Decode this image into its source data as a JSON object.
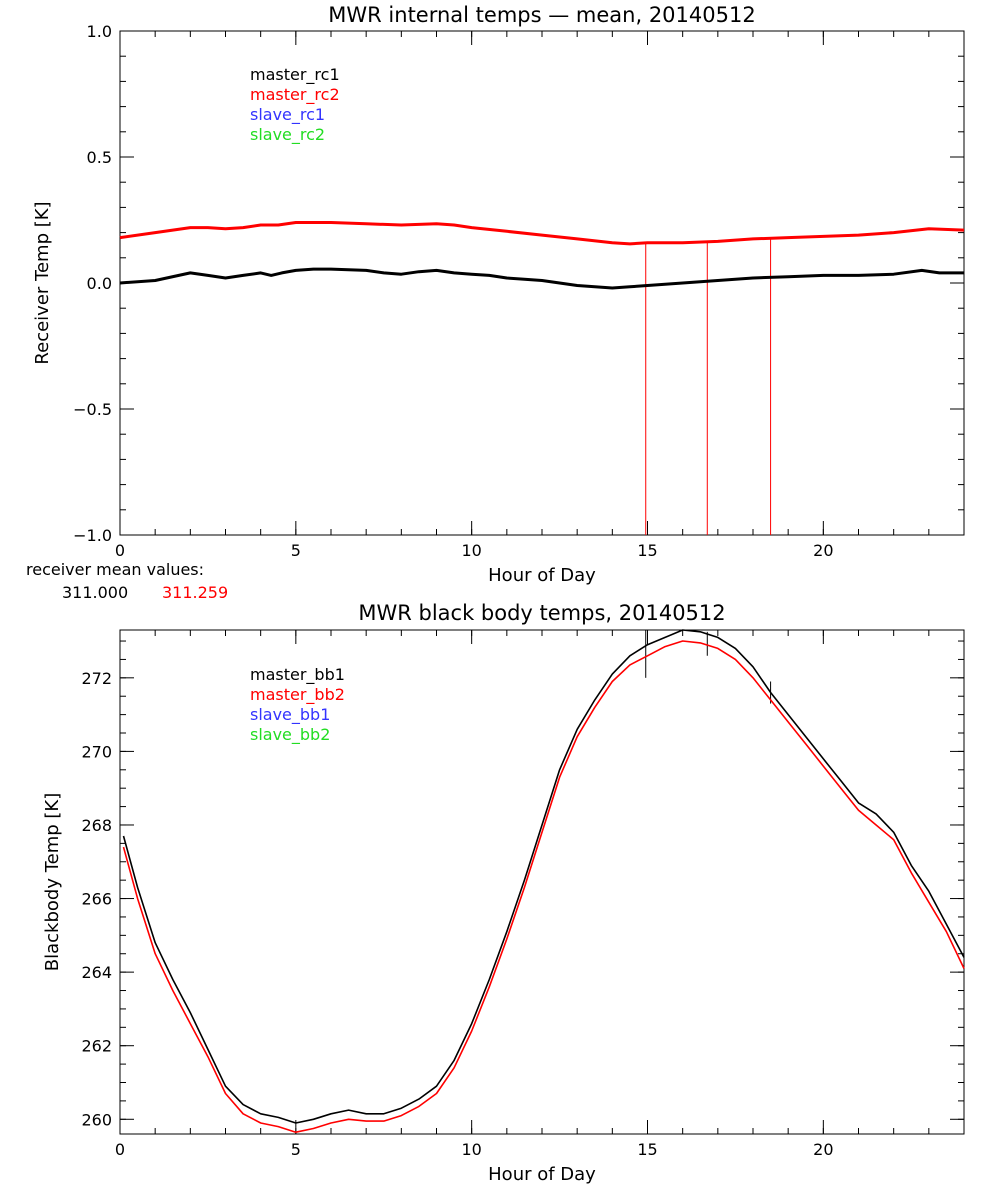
{
  "chart_data": [
    {
      "type": "line",
      "title": "MWR internal temps — mean, 20140512",
      "xlabel": "Hour of Day",
      "ylabel": "Receiver Temp [K]",
      "xlim": [
        0,
        24
      ],
      "ylim": [
        -1.0,
        1.0
      ],
      "xticks": [
        0,
        5,
        10,
        15,
        20
      ],
      "xtick_labels": [
        "0",
        "5",
        "10",
        "15",
        "20"
      ],
      "yticks": [
        -1.0,
        -0.5,
        0.0,
        0.5,
        1.0
      ],
      "ytick_labels": [
        "−1.0",
        "−0.5",
        "0.0",
        "0.5",
        "1.0"
      ],
      "legend_position": "top-left",
      "series": [
        {
          "name": "master_rc1",
          "color": "#000000",
          "x": [
            0,
            1,
            2,
            2.5,
            3,
            3.5,
            4,
            4.3,
            4.6,
            5,
            5.5,
            6,
            7,
            7.5,
            8,
            8.5,
            9,
            9.5,
            10,
            10.5,
            11,
            11.5,
            12,
            12.5,
            13,
            13.5,
            14,
            14.5,
            15,
            16,
            17,
            18,
            19,
            20,
            21,
            22,
            22.8,
            23.3,
            24
          ],
          "y": [
            0.0,
            0.01,
            0.04,
            0.03,
            0.02,
            0.03,
            0.04,
            0.03,
            0.04,
            0.05,
            0.055,
            0.055,
            0.05,
            0.04,
            0.035,
            0.045,
            0.05,
            0.04,
            0.035,
            0.03,
            0.02,
            0.015,
            0.01,
            0.0,
            -0.01,
            -0.015,
            -0.02,
            -0.015,
            -0.01,
            0.0,
            0.01,
            0.02,
            0.025,
            0.03,
            0.03,
            0.035,
            0.05,
            0.04,
            0.04
          ]
        },
        {
          "name": "master_rc2",
          "color": "#ff0000",
          "x": [
            0,
            1,
            2,
            2.5,
            3,
            3.5,
            4,
            4.5,
            5,
            5.5,
            6,
            7,
            8,
            9,
            9.5,
            10,
            11,
            12,
            13,
            14,
            14.5,
            15,
            16,
            17,
            18,
            19,
            20,
            21,
            22,
            23,
            24
          ],
          "y": [
            0.18,
            0.2,
            0.22,
            0.22,
            0.215,
            0.22,
            0.23,
            0.23,
            0.24,
            0.24,
            0.24,
            0.235,
            0.23,
            0.235,
            0.23,
            0.22,
            0.205,
            0.19,
            0.175,
            0.16,
            0.155,
            0.16,
            0.16,
            0.165,
            0.175,
            0.18,
            0.185,
            0.19,
            0.2,
            0.215,
            0.21
          ]
        },
        {
          "name": "slave_rc1",
          "color": "#3333ff",
          "x": [],
          "y": []
        },
        {
          "name": "slave_rc2",
          "color": "#22dd22",
          "x": [],
          "y": []
        }
      ],
      "spikes": [
        {
          "x": 14.95,
          "y_from": 0.16,
          "y_to": -1.0,
          "color": "#ff0000"
        },
        {
          "x": 16.7,
          "y_from": 0.16,
          "y_to": -1.0,
          "color": "#ff0000"
        },
        {
          "x": 18.5,
          "y_from": 0.175,
          "y_to": -1.0,
          "color": "#ff0000"
        }
      ],
      "annotation": {
        "label": "receiver mean values:",
        "values": [
          {
            "text": "311.000",
            "color": "#000000"
          },
          {
            "text": "311.259",
            "color": "#ff0000"
          }
        ]
      }
    },
    {
      "type": "line",
      "title": "MWR black body temps, 20140512",
      "xlabel": "Hour of Day",
      "ylabel": "Blackbody Temp [K]",
      "xlim": [
        0,
        24
      ],
      "ylim": [
        259.6,
        273.3
      ],
      "xticks": [
        0,
        5,
        10,
        15,
        20
      ],
      "xtick_labels": [
        "0",
        "5",
        "10",
        "15",
        "20"
      ],
      "yticks": [
        260,
        262,
        264,
        266,
        268,
        270,
        272
      ],
      "ytick_labels": [
        "260",
        "262",
        "264",
        "266",
        "268",
        "270",
        "272"
      ],
      "legend_position": "top-left",
      "series": [
        {
          "name": "master_bb1",
          "color": "#000000",
          "x": [
            0.1,
            0.5,
            1,
            1.5,
            2,
            2.5,
            3,
            3.5,
            4,
            4.5,
            5,
            5.5,
            6,
            6.5,
            7,
            7.5,
            8,
            8.5,
            9,
            9.5,
            10,
            10.5,
            11,
            11.5,
            12,
            12.5,
            13,
            13.5,
            14,
            14.5,
            15,
            15.5,
            16,
            16.5,
            17,
            17.5,
            18,
            18.5,
            19,
            19.5,
            20,
            20.5,
            21,
            21.5,
            22,
            22.5,
            23,
            23.5,
            24
          ],
          "y": [
            267.7,
            266.3,
            264.8,
            263.8,
            262.9,
            261.9,
            260.9,
            260.4,
            260.15,
            260.05,
            259.9,
            260.0,
            260.15,
            260.25,
            260.15,
            260.15,
            260.3,
            260.55,
            260.9,
            261.6,
            262.6,
            263.8,
            265.1,
            266.5,
            268.0,
            269.5,
            270.6,
            271.4,
            272.1,
            272.6,
            272.9,
            273.1,
            273.3,
            273.25,
            273.1,
            272.8,
            272.3,
            271.6,
            271.0,
            270.4,
            269.8,
            269.2,
            268.6,
            268.3,
            267.8,
            266.9,
            266.2,
            265.3,
            264.4
          ]
        },
        {
          "name": "master_bb2",
          "color": "#ff0000",
          "x": [
            0.1,
            0.5,
            1,
            1.5,
            2,
            2.5,
            3,
            3.5,
            4,
            4.5,
            5,
            5.5,
            6,
            6.5,
            7,
            7.5,
            8,
            8.5,
            9,
            9.5,
            10,
            10.5,
            11,
            11.5,
            12,
            12.5,
            13,
            13.5,
            14,
            14.5,
            15,
            15.5,
            16,
            16.5,
            17,
            17.5,
            18,
            18.5,
            19,
            19.5,
            20,
            20.5,
            21,
            21.5,
            22,
            22.5,
            23,
            23.5,
            24
          ],
          "y": [
            267.4,
            266.0,
            264.5,
            263.5,
            262.6,
            261.7,
            260.7,
            260.15,
            259.9,
            259.8,
            259.65,
            259.75,
            259.9,
            260.0,
            259.95,
            259.95,
            260.1,
            260.35,
            260.7,
            261.4,
            262.4,
            263.6,
            264.9,
            266.3,
            267.8,
            269.3,
            270.4,
            271.2,
            271.9,
            272.35,
            272.6,
            272.85,
            273.0,
            272.95,
            272.8,
            272.5,
            272.0,
            271.4,
            270.8,
            270.2,
            269.6,
            269.0,
            268.4,
            268.0,
            267.6,
            266.7,
            265.9,
            265.1,
            264.1
          ]
        },
        {
          "name": "slave_bb1",
          "color": "#3333ff",
          "x": [],
          "y": []
        },
        {
          "name": "slave_bb2",
          "color": "#22dd22",
          "x": [],
          "y": []
        }
      ],
      "spikes": [
        {
          "x": 14.95,
          "y_from": 273.3,
          "y_to": 272.0,
          "color": "#000000"
        },
        {
          "x": 16.7,
          "y_from": 273.25,
          "y_to": 272.6,
          "color": "#000000"
        },
        {
          "x": 18.5,
          "y_from": 271.9,
          "y_to": 271.3,
          "color": "#000000"
        }
      ]
    }
  ]
}
